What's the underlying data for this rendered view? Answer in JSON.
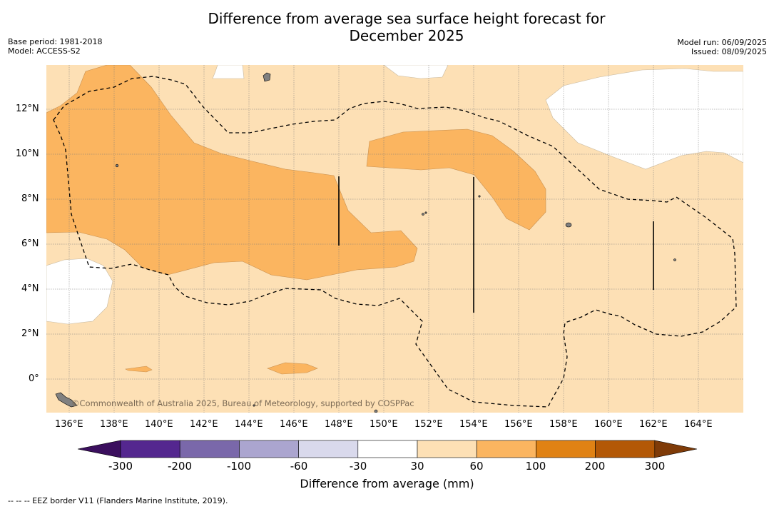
{
  "title_line1": "Difference from average sea surface height forecast for",
  "title_line2": "December 2025",
  "base_period": "Base period: 1981-2018",
  "model": "Model: ACCESS-S2",
  "model_run": "Model run: 06/09/2025",
  "issued": "Issued: 08/09/2025",
  "attribution": "©Commonwealth of Australia 2025, Bureau of Meteorology, supported by COSPPac",
  "footer": "--  --  -- EEZ border V11 (Flanders Marine Institute, 2019).",
  "colorbar_title": "Difference from average (mm)",
  "lat_ticks": [
    "12°N",
    "10°N",
    "8°N",
    "6°N",
    "4°N",
    "2°N",
    "0°"
  ],
  "lon_ticks": [
    "136°E",
    "138°E",
    "140°E",
    "142°E",
    "144°E",
    "146°E",
    "148°E",
    "150°E",
    "152°E",
    "154°E",
    "156°E",
    "158°E",
    "160°E",
    "162°E",
    "164°E"
  ],
  "colorbar": {
    "labels": [
      "-300",
      "-200",
      "-100",
      "-60",
      "-30",
      "30",
      "60",
      "100",
      "200",
      "300"
    ],
    "colors": [
      "#3b0f5e",
      "#54278f",
      "#7a68aa",
      "#aba5cf",
      "#d9d9ec",
      "#ffffff",
      "#fde0b5",
      "#fbb560",
      "#e08214",
      "#b35806",
      "#7f3b08"
    ]
  },
  "map_colors": {
    "light": "#fde0b5",
    "medium": "#fbb560",
    "land": "#808080"
  }
}
